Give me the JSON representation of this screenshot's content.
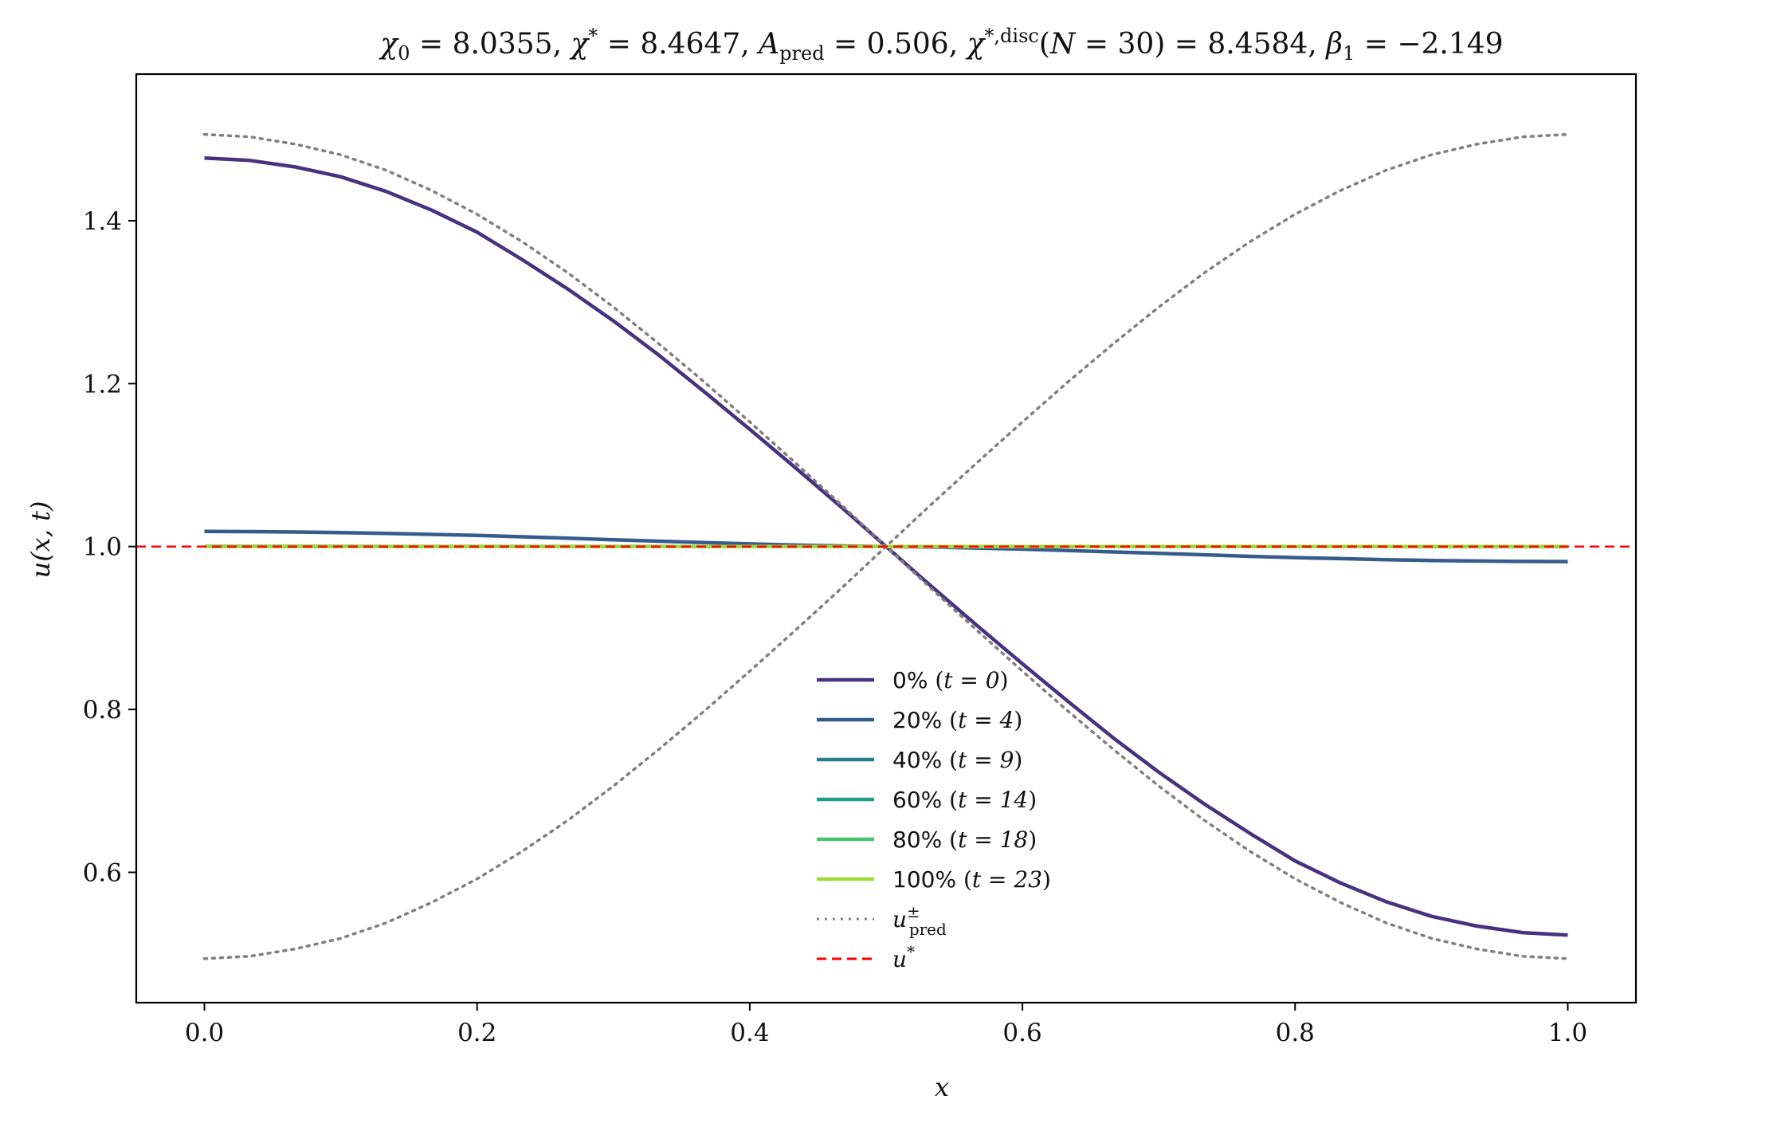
{
  "chart_data": {
    "type": "line",
    "title": "χ₀ = 8.0355,  χ* = 8.4647,  A_pred = 0.506,  χ^{*,disc}(N = 30) = 8.4584,  β₁ = −2.149",
    "xlabel": "x",
    "ylabel": "u(x, t)",
    "xlim": [
      -0.05,
      1.05
    ],
    "ylim": [
      0.44,
      1.58
    ],
    "xticks": [
      0.0,
      0.2,
      0.4,
      0.6,
      0.8,
      1.0
    ],
    "xtick_labels": [
      "0.0",
      "0.2",
      "0.4",
      "0.6",
      "0.8",
      "1.0"
    ],
    "yticks": [
      0.6,
      0.8,
      1.0,
      1.2,
      1.4
    ],
    "ytick_labels": [
      "0.6",
      "0.8",
      "1.0",
      "1.2",
      "1.4"
    ],
    "grid": false,
    "legend_position": "lower-center",
    "x": [
      0.0,
      0.0333,
      0.0667,
      0.1,
      0.1333,
      0.1667,
      0.2,
      0.2333,
      0.2667,
      0.3,
      0.3333,
      0.3667,
      0.4,
      0.4333,
      0.4667,
      0.5,
      0.5333,
      0.5667,
      0.6,
      0.6333,
      0.6667,
      0.7,
      0.7333,
      0.7667,
      0.8,
      0.8333,
      0.8667,
      0.9,
      0.9333,
      0.9667,
      1.0
    ],
    "series": [
      {
        "name": "0% (t = 0)",
        "color": "#46327e",
        "style": "solid",
        "values": [
          1.477,
          1.474,
          1.466,
          1.454,
          1.436,
          1.413,
          1.386,
          1.352,
          1.316,
          1.277,
          1.235,
          1.19,
          1.144,
          1.097,
          1.049,
          1.0,
          0.951,
          0.903,
          0.856,
          0.81,
          0.765,
          0.723,
          0.684,
          0.648,
          0.614,
          0.587,
          0.564,
          0.546,
          0.534,
          0.526,
          0.523
        ]
      },
      {
        "name": "20% (t = 4)",
        "color": "#365c8d",
        "style": "solid",
        "values": [
          1.0185,
          1.0183,
          1.0178,
          1.0171,
          1.0161,
          1.0149,
          1.0136,
          1.012,
          1.0102,
          1.0083,
          1.0066,
          1.0049,
          1.0032,
          1.0018,
          1.0007,
          1.0,
          0.9993,
          0.9982,
          0.9968,
          0.9951,
          0.9934,
          0.9917,
          0.9898,
          0.988,
          0.9864,
          0.9851,
          0.9839,
          0.9829,
          0.9822,
          0.9817,
          0.9815
        ]
      },
      {
        "name": "40% (t = 9)",
        "color": "#277f8e",
        "style": "solid",
        "values": [
          1.0002,
          1.0002,
          1.0002,
          1.0002,
          1.0001,
          1.0001,
          1.0001,
          1.0001,
          1.0001,
          1.0001,
          1.0001,
          1.0,
          1.0,
          1.0,
          1.0,
          1.0,
          1.0,
          1.0,
          1.0,
          1.0,
          0.9999,
          0.9999,
          0.9999,
          0.9999,
          0.9999,
          0.9999,
          0.9999,
          0.9998,
          0.9998,
          0.9998,
          0.9998
        ]
      },
      {
        "name": "60% (t = 14)",
        "color": "#1fa187",
        "style": "solid",
        "values": [
          1.0,
          1.0,
          1.0,
          1.0,
          1.0,
          1.0,
          1.0,
          1.0,
          1.0,
          1.0,
          1.0,
          1.0,
          1.0,
          1.0,
          1.0,
          1.0,
          1.0,
          1.0,
          1.0,
          1.0,
          1.0,
          1.0,
          1.0,
          1.0,
          1.0,
          1.0,
          1.0,
          1.0,
          1.0,
          1.0,
          1.0
        ]
      },
      {
        "name": "80% (t = 18)",
        "color": "#4ac16d",
        "style": "solid",
        "values": [
          1.0,
          1.0,
          1.0,
          1.0,
          1.0,
          1.0,
          1.0,
          1.0,
          1.0,
          1.0,
          1.0,
          1.0,
          1.0,
          1.0,
          1.0,
          1.0,
          1.0,
          1.0,
          1.0,
          1.0,
          1.0,
          1.0,
          1.0,
          1.0,
          1.0,
          1.0,
          1.0,
          1.0,
          1.0,
          1.0,
          1.0
        ]
      },
      {
        "name": "100% (t = 23)",
        "color": "#a0da39",
        "style": "solid",
        "values": [
          1.0,
          1.0,
          1.0,
          1.0,
          1.0,
          1.0,
          1.0,
          1.0,
          1.0,
          1.0,
          1.0,
          1.0,
          1.0,
          1.0,
          1.0,
          1.0,
          1.0,
          1.0,
          1.0,
          1.0,
          1.0,
          1.0,
          1.0,
          1.0,
          1.0,
          1.0,
          1.0,
          1.0,
          1.0,
          1.0,
          1.0
        ]
      },
      {
        "name": "u_pred^± (+)",
        "color": "#808080",
        "style": "dotted",
        "legend": false,
        "values": [
          1.506,
          1.503,
          1.494,
          1.481,
          1.462,
          1.437,
          1.408,
          1.374,
          1.336,
          1.294,
          1.249,
          1.202,
          1.153,
          1.103,
          1.052,
          1.0,
          0.948,
          0.897,
          0.847,
          0.798,
          0.751,
          0.706,
          0.664,
          0.626,
          0.592,
          0.563,
          0.538,
          0.519,
          0.506,
          0.497,
          0.494
        ]
      },
      {
        "name": "u_pred^± (−)",
        "color": "#808080",
        "style": "dotted",
        "legend": false,
        "values": [
          0.494,
          0.497,
          0.506,
          0.519,
          0.538,
          0.563,
          0.592,
          0.626,
          0.664,
          0.706,
          0.751,
          0.798,
          0.847,
          0.897,
          0.948,
          1.0,
          1.052,
          1.103,
          1.153,
          1.202,
          1.249,
          1.294,
          1.336,
          1.374,
          1.408,
          1.437,
          1.462,
          1.481,
          1.494,
          1.503,
          1.506
        ]
      }
    ],
    "hline": {
      "name": "u*",
      "value": 1.0,
      "color": "#ff0000",
      "style": "dashed"
    },
    "legend_entries": [
      {
        "pct": "0%",
        "math": "t = 0",
        "color": "#46327e",
        "style": "solid"
      },
      {
        "pct": "20%",
        "math": "t = 4",
        "color": "#365c8d",
        "style": "solid"
      },
      {
        "pct": "40%",
        "math": "t = 9",
        "color": "#277f8e",
        "style": "solid"
      },
      {
        "pct": "60%",
        "math": "t = 14",
        "color": "#1fa187",
        "style": "solid"
      },
      {
        "pct": "80%",
        "math": "t = 18",
        "color": "#4ac16d",
        "style": "solid"
      },
      {
        "pct": "100%",
        "math": "t = 23",
        "color": "#a0da39",
        "style": "solid"
      },
      {
        "pct": "",
        "math": "u_pred^±",
        "color": "#808080",
        "style": "dotted"
      },
      {
        "pct": "",
        "math": "u*",
        "color": "#ff0000",
        "style": "dashed"
      }
    ]
  }
}
